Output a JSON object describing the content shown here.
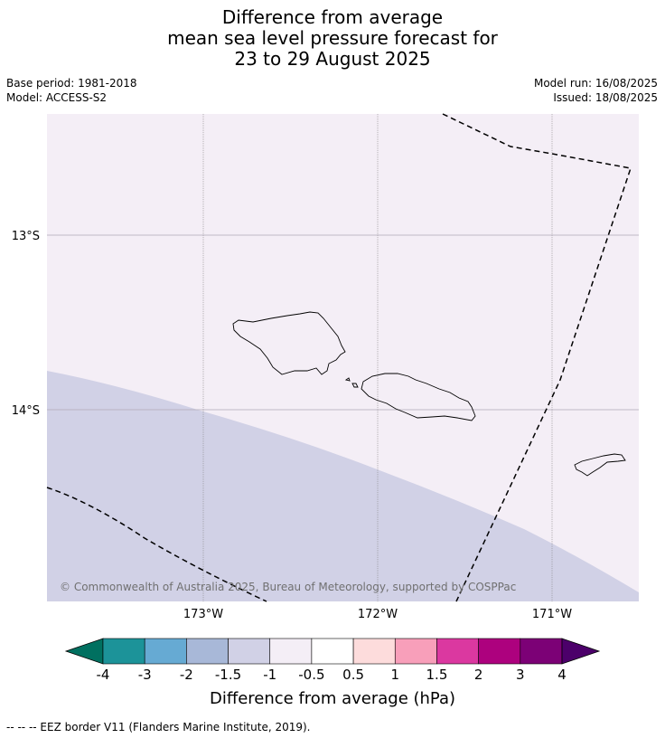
{
  "title": {
    "line1": "Difference from average",
    "line2": "mean sea level pressure forecast for",
    "line3": "23 to 29 August 2025"
  },
  "meta": {
    "base_period": "Base period: 1981-2018",
    "model": "Model: ACCESS-S2",
    "model_run": "Model run: 16/08/2025",
    "issued": "Issued: 18/08/2025"
  },
  "map": {
    "lat_labels": [
      "13°S",
      "14°S"
    ],
    "lon_labels": [
      "173°W",
      "172°W",
      "171°W"
    ],
    "copyright": "© Commonwealth of Australia 2025, Bureau of Meteorology, supported by COSPPac",
    "fill_colors": {
      "upper": "#f4eef6",
      "lower": "#d1d1e6"
    }
  },
  "colorbar": {
    "title": "Difference from average (hPa)",
    "ticks": [
      "-4",
      "-3",
      "-2",
      "-1.5",
      "-1",
      "-0.5",
      "0.5",
      "1",
      "1.5",
      "2",
      "3",
      "4"
    ],
    "colors": [
      "#007060",
      "#1c9399",
      "#66aad3",
      "#a8b8d8",
      "#d1d1e6",
      "#f4eef6",
      "#ffffff",
      "#fddcdc",
      "#f89fba",
      "#db38a0",
      "#ad017e",
      "#7c0176",
      "#4c006a"
    ]
  },
  "legend": {
    "eez": "--  --  -- EEZ border V11 (Flanders Marine Institute, 2019)."
  }
}
